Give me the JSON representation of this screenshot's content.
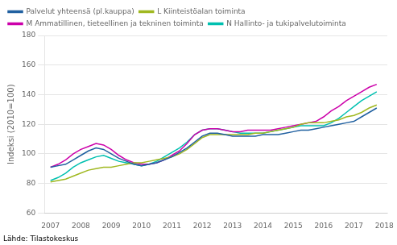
{
  "chart_data": {
    "type": "line",
    "ylabel": "Indeksi (2010=100)",
    "annotations": [
      "Lähde: Tilastokeskus"
    ],
    "xlim": [
      2006.8,
      2018.1
    ],
    "xticks": [
      2007,
      2008,
      2009,
      2010,
      2011,
      2012,
      2013,
      2014,
      2015,
      2016,
      2017,
      2018
    ],
    "ylim": [
      60,
      180
    ],
    "yticks": [
      60,
      80,
      100,
      120,
      140,
      160,
      180
    ],
    "grid": "y",
    "legend": "upper left",
    "x": [
      2007.0,
      2007.25,
      2007.5,
      2007.75,
      2008.0,
      2008.25,
      2008.5,
      2008.75,
      2009.0,
      2009.25,
      2009.5,
      2009.75,
      2010.0,
      2010.25,
      2010.5,
      2010.75,
      2011.0,
      2011.25,
      2011.5,
      2011.75,
      2012.0,
      2012.25,
      2012.5,
      2012.75,
      2013.0,
      2013.25,
      2013.5,
      2013.75,
      2014.0,
      2014.25,
      2014.5,
      2014.75,
      2015.0,
      2015.25,
      2015.5,
      2015.75,
      2016.0,
      2016.25,
      2016.5,
      2016.75,
      2017.0,
      2017.25,
      2017.5,
      2017.75
    ],
    "series": [
      {
        "name": "Palvelut yhteensä (pl.kauppa)",
        "color": "#2060a0",
        "values": [
          91,
          92,
          93,
          96,
          99,
          102,
          104,
          103,
          100,
          97,
          95,
          93,
          92,
          93,
          94,
          96,
          98,
          101,
          104,
          108,
          112,
          114,
          114,
          113,
          112,
          112,
          112,
          112,
          113,
          113,
          113,
          114,
          115,
          116,
          116,
          117,
          118,
          119,
          120,
          121,
          122,
          125,
          128,
          131
        ]
      },
      {
        "name": "L Kiinteistöalan toiminta",
        "color": "#a0b820",
        "values": [
          81,
          82,
          83,
          85,
          87,
          89,
          90,
          91,
          91,
          92,
          93,
          94,
          94,
          95,
          96,
          97,
          98,
          100,
          103,
          107,
          111,
          113,
          113,
          113,
          113,
          113,
          113,
          114,
          114,
          115,
          116,
          117,
          118,
          120,
          121,
          121,
          121,
          122,
          123,
          125,
          126,
          128,
          131,
          133
        ]
      },
      {
        "name": "M Ammatillinen, tieteellinen ja tekninen toiminta",
        "color": "#cc00aa",
        "values": [
          91,
          93,
          96,
          100,
          103,
          105,
          107,
          106,
          103,
          99,
          96,
          94,
          93,
          93,
          94,
          96,
          99,
          102,
          107,
          113,
          116,
          117,
          117,
          116,
          115,
          115,
          116,
          116,
          116,
          116,
          117,
          118,
          119,
          120,
          121,
          122,
          125,
          129,
          132,
          136,
          139,
          142,
          145,
          147
        ]
      },
      {
        "name": "N Hallinto- ja tukipalvelutoiminta",
        "color": "#00c0b0",
        "values": [
          82,
          84,
          87,
          91,
          94,
          96,
          98,
          99,
          97,
          95,
          94,
          93,
          92,
          93,
          95,
          98,
          101,
          104,
          108,
          113,
          116,
          117,
          117,
          116,
          115,
          114,
          114,
          114,
          114,
          115,
          116,
          117,
          118,
          119,
          119,
          119,
          119,
          121,
          124,
          128,
          132,
          136,
          139,
          142
        ]
      }
    ]
  }
}
